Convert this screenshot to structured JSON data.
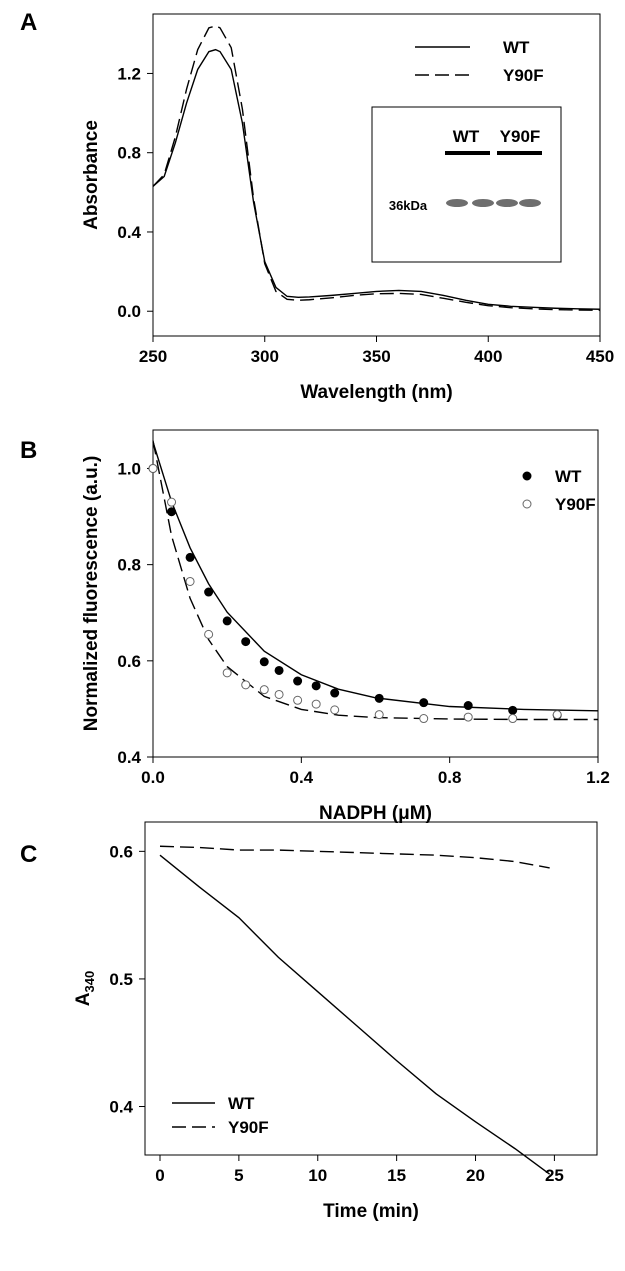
{
  "chart_data": [
    {
      "type": "line",
      "label": "A",
      "xlabel": "Wavelength (nm)",
      "ylabel": "Absorbance",
      "xlim": [
        250,
        450
      ],
      "ylim": [
        -0.125,
        1.5
      ],
      "xticks": [
        250,
        300,
        350,
        400,
        450
      ],
      "yticks": [
        {
          "value": 0,
          "label": "0.0"
        },
        0.4,
        0.8,
        1.2
      ],
      "legend": "upper right",
      "x": [
        250,
        255,
        260,
        265,
        270,
        275,
        278,
        280,
        285,
        290,
        295,
        300,
        305,
        310,
        315,
        320,
        330,
        340,
        350,
        360,
        370,
        380,
        390,
        400,
        410,
        420,
        430,
        440,
        450
      ],
      "series": [
        {
          "name": "WT",
          "color": "#000000",
          "dash": false,
          "values": [
            0.63,
            0.68,
            0.85,
            1.05,
            1.22,
            1.31,
            1.32,
            1.31,
            1.22,
            0.95,
            0.55,
            0.25,
            0.12,
            0.075,
            0.07,
            0.072,
            0.08,
            0.09,
            0.1,
            0.105,
            0.1,
            0.08,
            0.055,
            0.035,
            0.025,
            0.02,
            0.015,
            0.012,
            0.01
          ]
        },
        {
          "name": "Y90F",
          "color": "#000000",
          "dash": true,
          "values": [
            0.63,
            0.69,
            0.88,
            1.12,
            1.32,
            1.43,
            1.44,
            1.43,
            1.33,
            1.02,
            0.57,
            0.24,
            0.1,
            0.06,
            0.055,
            0.058,
            0.068,
            0.08,
            0.088,
            0.09,
            0.085,
            0.065,
            0.045,
            0.028,
            0.018,
            0.012,
            0.008,
            0.006,
            0.005
          ]
        }
      ],
      "inset": {
        "lanes": [
          "WT",
          "Y90F"
        ],
        "marker": "36kDa"
      }
    },
    {
      "type": "scatter",
      "label": "B",
      "xlabel": "NADPH (μM)",
      "ylabel": "Normalized fluorescence (a.u.)",
      "xlim": [
        0,
        1.2
      ],
      "ylim": [
        0.4,
        1.08
      ],
      "xticks": [
        {
          "value": 0,
          "label": "0.0"
        },
        0.4,
        0.8,
        1.2
      ],
      "yticks": [
        0.4,
        0.6,
        0.8,
        {
          "value": 1,
          "label": "1.0"
        }
      ],
      "legend": "upper right",
      "series": [
        {
          "name": "WT",
          "color": "#000000",
          "marker": "filled",
          "x": [
            0,
            0.05,
            0.1,
            0.15,
            0.2,
            0.25,
            0.3,
            0.34,
            0.39,
            0.44,
            0.49,
            0.61,
            0.73,
            0.85,
            0.97,
            1.09
          ],
          "values": [
            1.0,
            0.91,
            0.815,
            0.743,
            0.683,
            0.64,
            0.598,
            0.58,
            0.558,
            0.548,
            0.533,
            0.522,
            0.513,
            0.507,
            0.497,
            0.487
          ]
        },
        {
          "name": "Y90F",
          "color": "#000000",
          "marker": "open",
          "x": [
            0,
            0.05,
            0.1,
            0.15,
            0.2,
            0.25,
            0.3,
            0.34,
            0.39,
            0.44,
            0.49,
            0.61,
            0.73,
            0.85,
            0.97,
            1.09
          ],
          "values": [
            1.0,
            0.93,
            0.765,
            0.655,
            0.575,
            0.55,
            0.54,
            0.53,
            0.518,
            0.51,
            0.498,
            0.488,
            0.48,
            0.483,
            0.48,
            0.488
          ]
        }
      ],
      "fits": [
        {
          "color": "#000000",
          "dash": false,
          "x": [
            0,
            0.05,
            0.1,
            0.15,
            0.2,
            0.3,
            0.4,
            0.5,
            0.6,
            0.8,
            1.0,
            1.2
          ],
          "values": [
            1.055,
            0.931,
            0.835,
            0.76,
            0.701,
            0.62,
            0.571,
            0.541,
            0.523,
            0.505,
            0.499,
            0.496
          ]
        },
        {
          "color": "#000000",
          "dash": true,
          "x": [
            0,
            0.05,
            0.1,
            0.15,
            0.2,
            0.3,
            0.4,
            0.5,
            0.6,
            0.8,
            1.0,
            1.2
          ],
          "values": [
            1.058,
            0.86,
            0.73,
            0.644,
            0.588,
            0.526,
            0.499,
            0.487,
            0.482,
            0.479,
            0.478,
            0.478
          ]
        }
      ]
    },
    {
      "type": "line",
      "label": "C",
      "xlabel": "Time (min)",
      "ylabel": "A",
      "ylabel_subscript": "340",
      "xlim": [
        -0.95,
        27.7
      ],
      "ylim": [
        0.362,
        0.623
      ],
      "xticks": [
        0,
        5,
        10,
        15,
        20,
        25
      ],
      "yticks": [
        0.4,
        0.5,
        0.6
      ],
      "legend": "lower left",
      "x": [
        0,
        2.5,
        5,
        7.5,
        10,
        12.5,
        15,
        17.5,
        20,
        22.5,
        24.7
      ],
      "series": [
        {
          "name": "WT",
          "color": "#000000",
          "dash": false,
          "values": [
            0.597,
            0.572,
            0.548,
            0.517,
            0.49,
            0.463,
            0.436,
            0.41,
            0.388,
            0.367,
            0.347
          ]
        },
        {
          "name": "Y90F",
          "color": "#000000",
          "dash": true,
          "values": [
            0.604,
            0.603,
            0.601,
            0.601,
            0.6,
            0.599,
            0.598,
            0.597,
            0.595,
            0.592,
            0.587
          ]
        }
      ]
    }
  ]
}
